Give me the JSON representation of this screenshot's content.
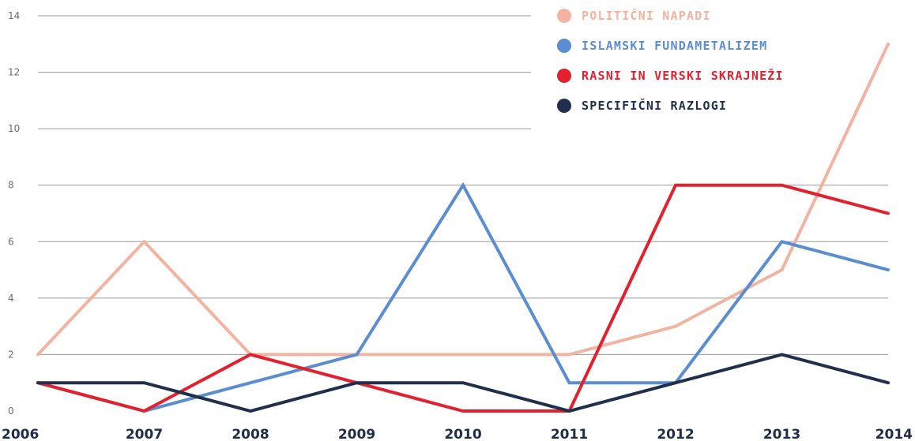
{
  "chart_data": {
    "type": "line",
    "categories": [
      "2006",
      "2007",
      "2008",
      "2009",
      "2010",
      "2011",
      "2012",
      "2013",
      "2014"
    ],
    "ylim": [
      0,
      14
    ],
    "yticks": [
      0,
      2,
      4,
      6,
      8,
      10,
      12,
      14
    ],
    "grid": true,
    "legend_position": "top-right",
    "series": [
      {
        "name": "POLITIČNI NAPADI",
        "color": "#f2b3a0",
        "values": [
          2,
          6,
          2,
          2,
          2,
          2,
          3,
          5,
          13
        ]
      },
      {
        "name": "ISLAMSKI FUNDAMETALIZEM",
        "color": "#5a8ed0",
        "values": [
          1,
          0,
          1,
          2,
          8,
          1,
          1,
          6,
          5
        ]
      },
      {
        "name": "RASNI IN VERSKI SKRAJNEŽI",
        "color": "#e4202f",
        "values": [
          1,
          0,
          2,
          1,
          0,
          0,
          8,
          8,
          7
        ]
      },
      {
        "name": "SPECIFIČNI RAZLOGI",
        "color": "#1f2f4c",
        "values": [
          1,
          1,
          0,
          1,
          1,
          0,
          1,
          2,
          1
        ]
      }
    ]
  }
}
